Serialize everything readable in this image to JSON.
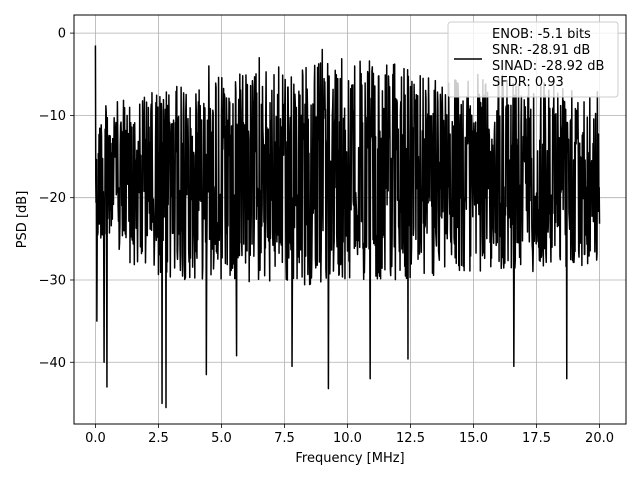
{
  "chart_data": {
    "type": "line",
    "xlabel": "Frequency [MHz]",
    "ylabel": "PSD [dB]",
    "xlim": [
      -0.85,
      21.05
    ],
    "ylim": [
      -47.5,
      2.2
    ],
    "xticks": [
      0.0,
      2.5,
      5.0,
      7.5,
      10.0,
      12.5,
      15.0,
      17.5,
      20.0
    ],
    "xtick_labels": [
      "0.0",
      "2.5",
      "5.0",
      "7.5",
      "10.0",
      "12.5",
      "15.0",
      "17.5",
      "20.0"
    ],
    "yticks": [
      0,
      -10,
      -20,
      -30,
      -40
    ],
    "ytick_labels": [
      "0",
      "−10",
      "−20",
      "−30",
      "−40"
    ],
    "grid": true,
    "legend_position": "top-right",
    "series": [
      {
        "color": "#000000",
        "label_lines": [
          "ENOB: -5.1 bits",
          "SNR: -28.91 dB",
          "SINAD: -28.92 dB",
          "SFDR: 0.93"
        ],
        "x_range": [
          0.0,
          20.0
        ],
        "peak_points": [
          [
            0.0,
            -1.5
          ],
          [
            0.05,
            -35.0
          ],
          [
            0.35,
            -40.0
          ],
          [
            0.45,
            -43.0
          ],
          [
            2.65,
            -45.0
          ],
          [
            2.8,
            -45.5
          ],
          [
            4.4,
            -41.5
          ],
          [
            5.6,
            -39.2
          ],
          [
            7.8,
            -40.5
          ],
          [
            9.25,
            -43.2
          ],
          [
            10.9,
            -42.0
          ],
          [
            12.4,
            -39.6
          ],
          [
            16.6,
            -40.5
          ],
          [
            18.7,
            -42.0
          ],
          [
            18.9,
            -7.0
          ],
          [
            12.5,
            -6.5
          ],
          [
            13.0,
            -5.5
          ],
          [
            9.0,
            -2.0
          ],
          [
            6.5,
            -3.0
          ],
          [
            4.5,
            -4.0
          ]
        ],
        "envelope_high": [
          [
            0.0,
            -9.0
          ],
          [
            2.5,
            -7.0
          ],
          [
            5.0,
            -5.0
          ],
          [
            7.5,
            -4.0
          ],
          [
            10.0,
            -3.0
          ],
          [
            12.5,
            -4.0
          ],
          [
            15.0,
            -5.0
          ],
          [
            17.5,
            -5.0
          ],
          [
            20.0,
            -6.0
          ]
        ],
        "envelope_low": [
          [
            0.0,
            -26.0
          ],
          [
            2.5,
            -30.0
          ],
          [
            5.0,
            -30.0
          ],
          [
            7.5,
            -31.0
          ],
          [
            10.0,
            -30.0
          ],
          [
            12.5,
            -30.0
          ],
          [
            15.0,
            -29.0
          ],
          [
            17.5,
            -29.0
          ],
          [
            20.0,
            -28.0
          ]
        ],
        "typical_value": -17.0
      }
    ]
  }
}
